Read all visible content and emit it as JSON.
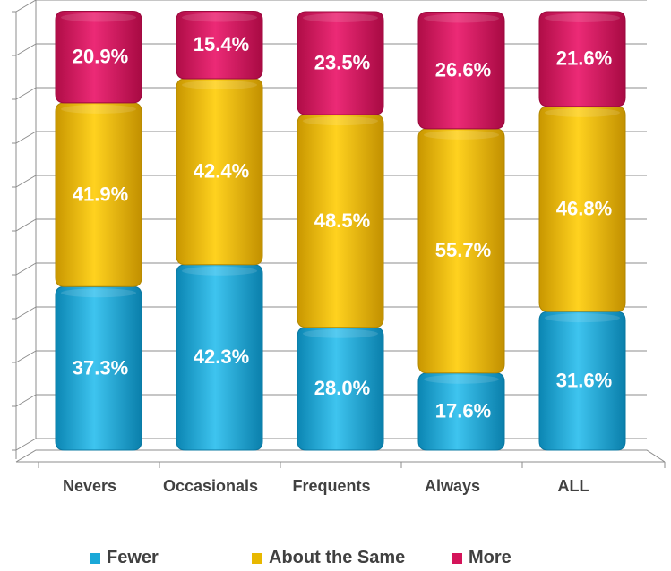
{
  "chart_data": {
    "type": "bar",
    "stacked": true,
    "categories": [
      "Nevers",
      "Occasionals",
      "Frequents",
      "Always",
      "ALL"
    ],
    "series": [
      {
        "name": "Fewer",
        "color": "#1aa8d8",
        "values": [
          37.3,
          42.3,
          28.0,
          17.6,
          31.6
        ],
        "labels": [
          "37.3%",
          "42.3%",
          "28.0%",
          "17.6%",
          "31.6%"
        ]
      },
      {
        "name": "About the Same",
        "color": "#e8b800",
        "values": [
          41.9,
          42.4,
          48.5,
          55.7,
          46.8
        ],
        "labels": [
          "41.9%",
          "42.4%",
          "48.5%",
          "55.7%",
          "46.8%"
        ]
      },
      {
        "name": "More",
        "color": "#d4145a",
        "values": [
          20.9,
          15.4,
          23.5,
          26.6,
          21.6
        ],
        "labels": [
          "20.9%",
          "15.4%",
          "23.5%",
          "26.6%",
          "21.6%"
        ]
      }
    ],
    "ylim": [
      0,
      100
    ],
    "grid": true,
    "legend_position": "bottom"
  }
}
